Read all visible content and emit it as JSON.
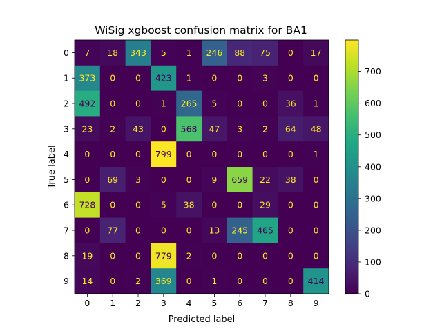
{
  "chart_data": {
    "type": "heatmap",
    "title": "WiSig xgboost confusion matrix for BA1",
    "xlabel": "Predicted label",
    "ylabel": "True label",
    "x_ticks": [
      "0",
      "1",
      "2",
      "3",
      "4",
      "5",
      "6",
      "7",
      "8",
      "9"
    ],
    "y_ticks": [
      "0",
      "1",
      "2",
      "3",
      "4",
      "5",
      "6",
      "7",
      "8",
      "9"
    ],
    "matrix": [
      [
        7,
        18,
        343,
        5,
        1,
        246,
        88,
        75,
        0,
        17
      ],
      [
        373,
        0,
        0,
        423,
        1,
        0,
        0,
        3,
        0,
        0
      ],
      [
        492,
        0,
        0,
        1,
        265,
        5,
        0,
        0,
        36,
        1
      ],
      [
        23,
        2,
        43,
        0,
        568,
        47,
        3,
        2,
        64,
        48
      ],
      [
        0,
        0,
        0,
        799,
        0,
        0,
        0,
        0,
        0,
        1
      ],
      [
        0,
        69,
        3,
        0,
        0,
        9,
        659,
        22,
        38,
        0
      ],
      [
        728,
        0,
        0,
        5,
        38,
        0,
        0,
        29,
        0,
        0
      ],
      [
        0,
        77,
        0,
        0,
        0,
        13,
        245,
        465,
        0,
        0
      ],
      [
        19,
        0,
        0,
        779,
        2,
        0,
        0,
        0,
        0,
        0
      ],
      [
        14,
        0,
        2,
        369,
        0,
        1,
        0,
        0,
        0,
        414
      ]
    ],
    "colorbar": {
      "colormap": "viridis",
      "range": [
        0,
        799
      ],
      "ticks": [
        0,
        100,
        200,
        300,
        400,
        500,
        600,
        700
      ]
    }
  }
}
